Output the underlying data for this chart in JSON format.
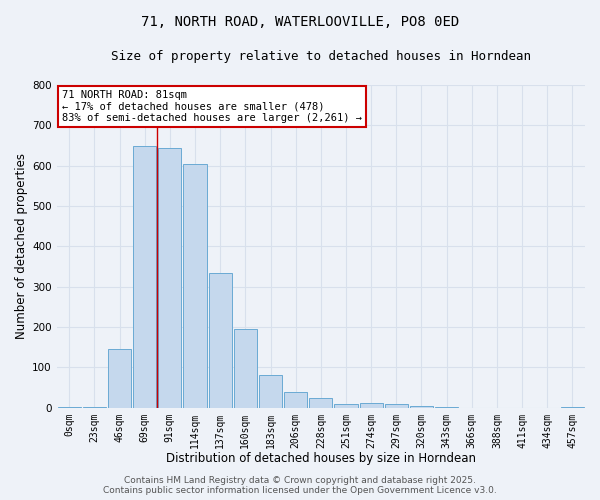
{
  "title_line1": "71, NORTH ROAD, WATERLOOVILLE, PO8 0ED",
  "title_line2": "Size of property relative to detached houses in Horndean",
  "xlabel": "Distribution of detached houses by size in Horndean",
  "ylabel": "Number of detached properties",
  "bin_labels": [
    "0sqm",
    "23sqm",
    "46sqm",
    "69sqm",
    "91sqm",
    "114sqm",
    "137sqm",
    "160sqm",
    "183sqm",
    "206sqm",
    "228sqm",
    "251sqm",
    "274sqm",
    "297sqm",
    "320sqm",
    "343sqm",
    "366sqm",
    "388sqm",
    "411sqm",
    "434sqm",
    "457sqm"
  ],
  "bar_heights": [
    2,
    2,
    145,
    650,
    645,
    605,
    335,
    195,
    80,
    40,
    25,
    10,
    12,
    8,
    5,
    2,
    0,
    0,
    0,
    0,
    2
  ],
  "bar_color": "#c5d8ed",
  "bar_edge_color": "#6aaad4",
  "annotation_text": "71 NORTH ROAD: 81sqm\n← 17% of detached houses are smaller (478)\n83% of semi-detached houses are larger (2,261) →",
  "annotation_box_color": "#ffffff",
  "annotation_box_edge": "#cc0000",
  "property_line_color": "#cc0000",
  "property_line_x": 3.5,
  "ylim": [
    0,
    800
  ],
  "yticks": [
    0,
    100,
    200,
    300,
    400,
    500,
    600,
    700,
    800
  ],
  "footer_line1": "Contains HM Land Registry data © Crown copyright and database right 2025.",
  "footer_line2": "Contains public sector information licensed under the Open Government Licence v3.0.",
  "bg_color": "#eef2f8",
  "grid_color": "#d8e0ec",
  "title_fontsize": 10,
  "subtitle_fontsize": 9,
  "axis_label_fontsize": 8.5,
  "tick_fontsize": 7,
  "annotation_fontsize": 7.5,
  "footer_fontsize": 6.5
}
